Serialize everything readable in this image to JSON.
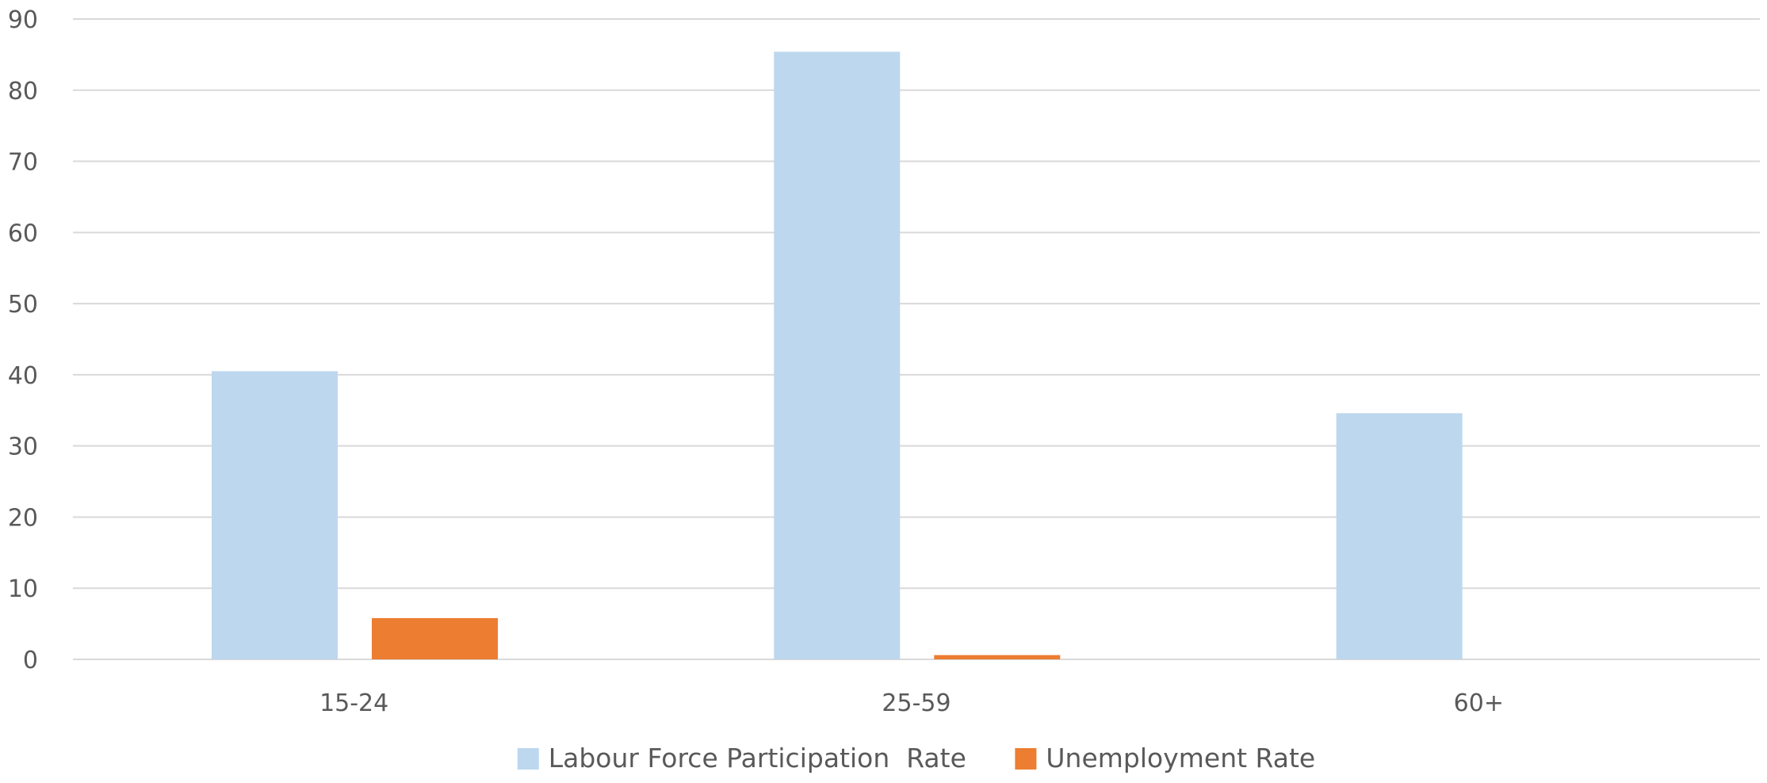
{
  "chart_data": {
    "type": "bar",
    "categories": [
      "15-24",
      "25-59",
      "60+"
    ],
    "series": [
      {
        "name": "Labour Force Participation  Rate",
        "values": [
          40.5,
          85.4,
          34.6
        ],
        "color": "#bdd7ee"
      },
      {
        "name": "Unemployment Rate",
        "values": [
          5.8,
          0.6,
          0
        ],
        "color": "#ed7d31"
      }
    ],
    "title": "",
    "xlabel": "",
    "ylabel": "",
    "ylim": [
      0,
      90
    ],
    "yticks": [
      0,
      10,
      20,
      30,
      40,
      50,
      60,
      70,
      80,
      90
    ],
    "grid": true,
    "gridline_color": "#d9d9d9",
    "legend_position": "bottom"
  }
}
